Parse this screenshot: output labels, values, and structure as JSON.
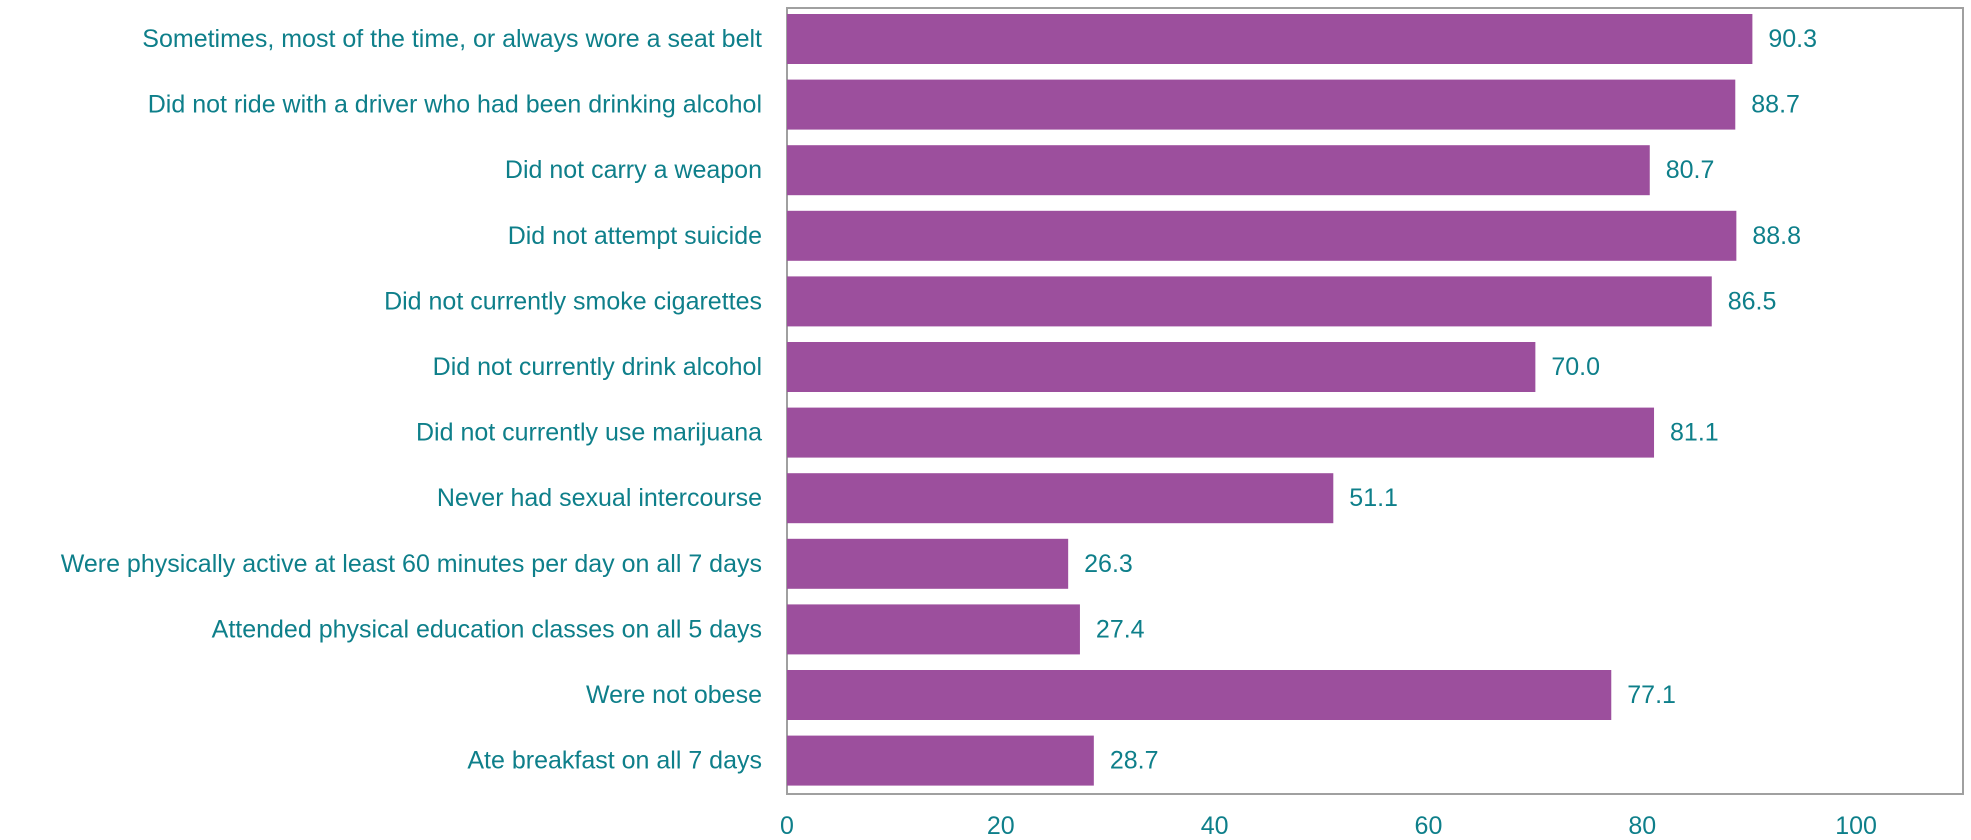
{
  "colors": {
    "bar": "#9c4f9d",
    "text": "#0e7f8a",
    "axis": "#a0a0a0"
  },
  "chart_data": {
    "type": "bar",
    "orientation": "horizontal",
    "categories": [
      "Sometimes, most of the time, or always wore a seat belt",
      "Did not ride with a driver who had been drinking alcohol",
      "Did not carry a weapon",
      "Did not attempt suicide",
      "Did not currently smoke cigarettes ",
      "Did not currently drink alcohol",
      "Did not currently use marijuana",
      "Never had sexual intercourse",
      "Were physically active at least 60 minutes per day on all 7 days",
      "Attended physical education classes on all 5 days",
      "Were not obese",
      "Ate breakfast on all 7 days"
    ],
    "values": [
      90.3,
      88.7,
      80.7,
      88.8,
      86.5,
      70.0,
      81.1,
      51.1,
      26.3,
      27.4,
      77.1,
      28.7
    ],
    "value_labels": [
      "90.3",
      "88.7",
      "80.7",
      "88.8",
      "86.5",
      "70.0",
      "81.1",
      "51.1",
      "26.3",
      "27.4",
      "77.1",
      "28.7"
    ],
    "xlim": [
      0,
      110
    ],
    "xticks": [
      0,
      20,
      40,
      60,
      80,
      100
    ],
    "xtick_labels": [
      "0",
      "20",
      "40",
      "60",
      "80",
      "100"
    ],
    "grid": false,
    "legend": "none"
  }
}
